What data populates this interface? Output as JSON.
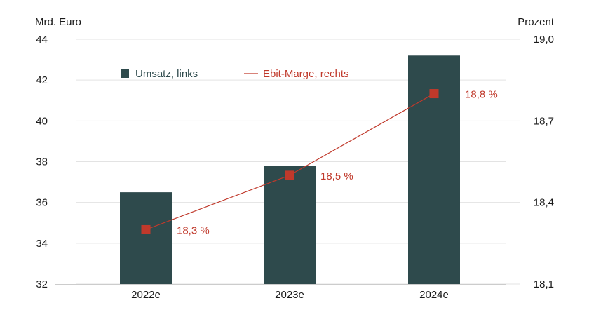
{
  "chart_data": {
    "type": "bar",
    "categories": [
      "2022e",
      "2023e",
      "2024e"
    ],
    "series": [
      {
        "name": "Umsatz, links",
        "type": "bar",
        "axis": "left",
        "values": [
          36.5,
          37.8,
          43.2
        ],
        "color": "#2e4a4c"
      },
      {
        "name": "Ebit-Marge, rechts",
        "type": "line",
        "axis": "right",
        "values": [
          18.3,
          18.5,
          18.8
        ],
        "labels": [
          "18,3 %",
          "18,5 %",
          "18,8 %"
        ],
        "color": "#c0392b"
      }
    ],
    "ylabel_left": "Mrd. Euro",
    "ylabel_right": "Prozent",
    "ylim_left": [
      32,
      44
    ],
    "ylim_right": [
      18.1,
      19.0
    ],
    "yticks_left": [
      "32",
      "34",
      "36",
      "38",
      "40",
      "42",
      "44"
    ],
    "yticks_right": [
      "18,1",
      "18,4",
      "18,7",
      "19,0"
    ],
    "grid": true,
    "legend": "top-left"
  }
}
